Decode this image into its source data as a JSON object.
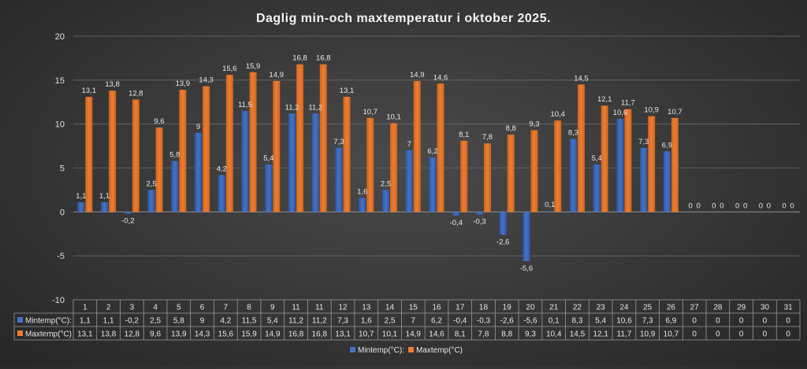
{
  "chart_data": {
    "type": "bar",
    "title": "Daglig min-och maxtemperatur i oktober 2025.",
    "categories": [
      "1",
      "2",
      "3",
      "4",
      "5",
      "6",
      "7",
      "8",
      "9",
      "11",
      "11",
      "12",
      "13",
      "14",
      "15",
      "16",
      "17",
      "18",
      "19",
      "20",
      "21",
      "22",
      "23",
      "24",
      "25",
      "26",
      "27",
      "28",
      "29",
      "30",
      "31"
    ],
    "series": [
      {
        "name": "Mintemp(°C):",
        "color": "#4472c4",
        "values": [
          1.1,
          1.1,
          -0.2,
          2.5,
          5.8,
          9,
          4.2,
          11.5,
          5.4,
          11.2,
          11.2,
          7.3,
          1.6,
          2.5,
          7,
          6.2,
          -0.4,
          -0.3,
          -2.6,
          -5.6,
          0.1,
          8.3,
          5.4,
          10.6,
          7.3,
          6.9,
          0,
          0,
          0,
          0,
          0
        ],
        "labels": [
          "1,1",
          "1,1",
          "-0,2",
          "2,5",
          "5,8",
          "9",
          "4,2",
          "11,5",
          "5,4",
          "11,2",
          "11,2",
          "7,3",
          "1,6",
          "2,5",
          "7",
          "6,2",
          "-0,4",
          "-0,3",
          "-2,6",
          "-5,6",
          "0,1",
          "8,3",
          "5,4",
          "10,6",
          "7,3",
          "6,9",
          "0",
          "0",
          "0",
          "0",
          "0"
        ]
      },
      {
        "name": "Maxtemp(°C)",
        "color": "#ed7d31",
        "values": [
          13.1,
          13.8,
          12.8,
          9.6,
          13.9,
          14.3,
          15.6,
          15.9,
          14.9,
          16.8,
          16.8,
          13.1,
          10.7,
          10.1,
          14.9,
          14.6,
          8.1,
          7.8,
          8.8,
          9.3,
          10.4,
          14.5,
          12.1,
          11.7,
          10.9,
          10.7,
          0,
          0,
          0,
          0,
          0
        ],
        "labels": [
          "13,1",
          "13,8",
          "12,8",
          "9,6",
          "13,9",
          "14,3",
          "15,6",
          "15,9",
          "14,9",
          "16,8",
          "16,8",
          "13,1",
          "10,7",
          "10,1",
          "14,9",
          "14,6",
          "8,1",
          "7,8",
          "8,8",
          "9,3",
          "10,4",
          "14,5",
          "12,1",
          "11,7",
          "10,9",
          "10,7",
          "0",
          "0",
          "0",
          "0",
          "0"
        ]
      }
    ],
    "ylim": [
      -10,
      20
    ],
    "yticks": [
      {
        "value": 20,
        "label": "20"
      },
      {
        "value": 15,
        "label": "15"
      },
      {
        "value": 10,
        "label": "10"
      },
      {
        "value": 5,
        "label": "5"
      },
      {
        "value": 0,
        "label": "0"
      },
      {
        "value": -5,
        "label": "-5"
      },
      {
        "value": -10,
        "label": "-10"
      }
    ],
    "grid": true,
    "legend": "bottom",
    "data_table": true
  }
}
